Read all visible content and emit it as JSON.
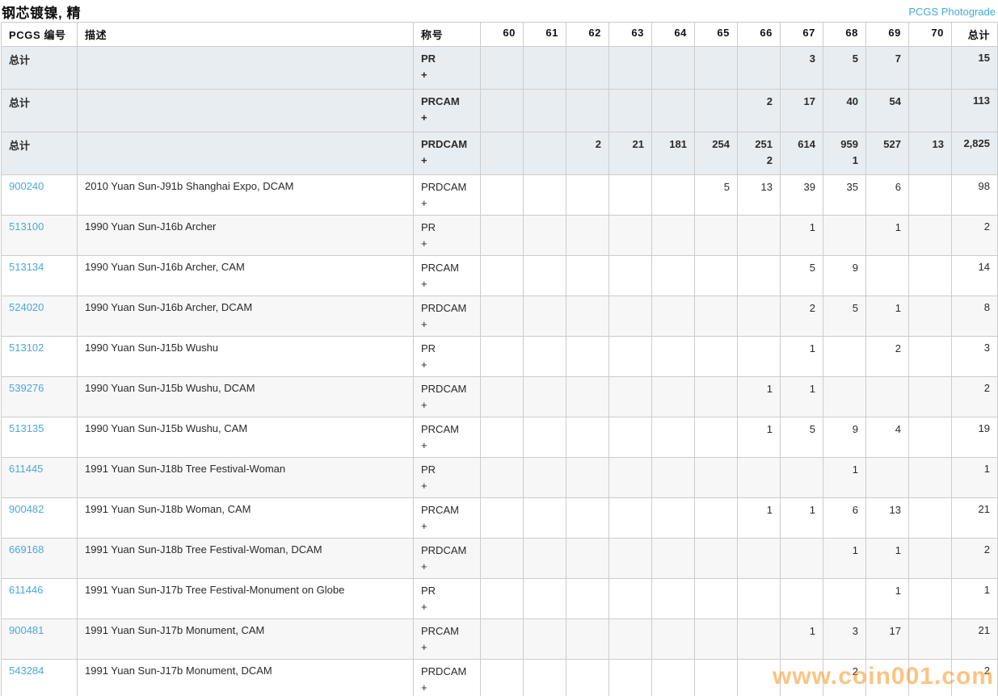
{
  "header": {
    "title": "钢芯镀镍, 精",
    "photograde_link": "PCGS Photograde"
  },
  "table": {
    "columns": {
      "pcgs": "PCGS 编号",
      "description": "描述",
      "designation": "称号",
      "grades": [
        "60",
        "61",
        "62",
        "63",
        "64",
        "65",
        "66",
        "67",
        "68",
        "69",
        "70"
      ],
      "total": "总计"
    },
    "plus_label": "+",
    "rows": [
      {
        "type": "total",
        "pcgs": "总计",
        "description": "",
        "designation": "PR",
        "grades": [
          "",
          "",
          "",
          "",
          "",
          "",
          "",
          "3",
          "5",
          "7",
          ""
        ],
        "grades_plus": [
          "",
          "",
          "",
          "",
          "",
          "",
          "",
          "",
          "",
          "",
          ""
        ],
        "total": "15"
      },
      {
        "type": "total",
        "pcgs": "总计",
        "description": "",
        "designation": "PRCAM",
        "grades": [
          "",
          "",
          "",
          "",
          "",
          "",
          "2",
          "17",
          "40",
          "54",
          ""
        ],
        "grades_plus": [
          "",
          "",
          "",
          "",
          "",
          "",
          "",
          "",
          "",
          "",
          ""
        ],
        "total": "113"
      },
      {
        "type": "total",
        "pcgs": "总计",
        "description": "",
        "designation": "PRDCAM",
        "grades": [
          "",
          "",
          "2",
          "21",
          "181",
          "254",
          "251",
          "614",
          "959",
          "527",
          "13"
        ],
        "grades_plus": [
          "",
          "",
          "",
          "",
          "",
          "",
          "2",
          "",
          "1",
          "",
          ""
        ],
        "total": "2,825"
      },
      {
        "type": "coin",
        "pcgs": "900240",
        "description": "2010 Yuan Sun-J91b Shanghai Expo, DCAM",
        "designation": "PRDCAM",
        "grades": [
          "",
          "",
          "",
          "",
          "",
          "5",
          "13",
          "39",
          "35",
          "6",
          ""
        ],
        "grades_plus": [
          "",
          "",
          "",
          "",
          "",
          "",
          "",
          "",
          "",
          "",
          ""
        ],
        "total": "98"
      },
      {
        "type": "coin",
        "pcgs": "513100",
        "description": "1990 Yuan Sun-J16b Archer",
        "designation": "PR",
        "grades": [
          "",
          "",
          "",
          "",
          "",
          "",
          "",
          "1",
          "",
          "1",
          ""
        ],
        "grades_plus": [
          "",
          "",
          "",
          "",
          "",
          "",
          "",
          "",
          "",
          "",
          ""
        ],
        "total": "2"
      },
      {
        "type": "coin",
        "pcgs": "513134",
        "description": "1990 Yuan Sun-J16b Archer, CAM",
        "designation": "PRCAM",
        "grades": [
          "",
          "",
          "",
          "",
          "",
          "",
          "",
          "5",
          "9",
          "",
          ""
        ],
        "grades_plus": [
          "",
          "",
          "",
          "",
          "",
          "",
          "",
          "",
          "",
          "",
          ""
        ],
        "total": "14"
      },
      {
        "type": "coin",
        "pcgs": "524020",
        "description": "1990 Yuan Sun-J16b Archer, DCAM",
        "designation": "PRDCAM",
        "grades": [
          "",
          "",
          "",
          "",
          "",
          "",
          "",
          "2",
          "5",
          "1",
          ""
        ],
        "grades_plus": [
          "",
          "",
          "",
          "",
          "",
          "",
          "",
          "",
          "",
          "",
          ""
        ],
        "total": "8"
      },
      {
        "type": "coin",
        "pcgs": "513102",
        "description": "1990 Yuan Sun-J15b Wushu",
        "designation": "PR",
        "grades": [
          "",
          "",
          "",
          "",
          "",
          "",
          "",
          "1",
          "",
          "2",
          ""
        ],
        "grades_plus": [
          "",
          "",
          "",
          "",
          "",
          "",
          "",
          "",
          "",
          "",
          ""
        ],
        "total": "3"
      },
      {
        "type": "coin",
        "pcgs": "539276",
        "description": "1990 Yuan Sun-J15b Wushu, DCAM",
        "designation": "PRDCAM",
        "grades": [
          "",
          "",
          "",
          "",
          "",
          "",
          "1",
          "1",
          "",
          "",
          ""
        ],
        "grades_plus": [
          "",
          "",
          "",
          "",
          "",
          "",
          "",
          "",
          "",
          "",
          ""
        ],
        "total": "2"
      },
      {
        "type": "coin",
        "pcgs": "513135",
        "description": "1990 Yuan Sun-J15b Wushu, CAM",
        "designation": "PRCAM",
        "grades": [
          "",
          "",
          "",
          "",
          "",
          "",
          "1",
          "5",
          "9",
          "4",
          ""
        ],
        "grades_plus": [
          "",
          "",
          "",
          "",
          "",
          "",
          "",
          "",
          "",
          "",
          ""
        ],
        "total": "19"
      },
      {
        "type": "coin",
        "pcgs": "611445",
        "description": "1991 Yuan Sun-J18b Tree Festival-Woman",
        "designation": "PR",
        "grades": [
          "",
          "",
          "",
          "",
          "",
          "",
          "",
          "",
          "1",
          "",
          ""
        ],
        "grades_plus": [
          "",
          "",
          "",
          "",
          "",
          "",
          "",
          "",
          "",
          "",
          ""
        ],
        "total": "1"
      },
      {
        "type": "coin",
        "pcgs": "900482",
        "description": "1991 Yuan Sun-J18b Woman, CAM",
        "designation": "PRCAM",
        "grades": [
          "",
          "",
          "",
          "",
          "",
          "",
          "1",
          "1",
          "6",
          "13",
          ""
        ],
        "grades_plus": [
          "",
          "",
          "",
          "",
          "",
          "",
          "",
          "",
          "",
          "",
          ""
        ],
        "total": "21"
      },
      {
        "type": "coin",
        "pcgs": "669168",
        "description": "1991 Yuan Sun-J18b Tree Festival-Woman, DCAM",
        "designation": "PRDCAM",
        "grades": [
          "",
          "",
          "",
          "",
          "",
          "",
          "",
          "",
          "1",
          "1",
          ""
        ],
        "grades_plus": [
          "",
          "",
          "",
          "",
          "",
          "",
          "",
          "",
          "",
          "",
          ""
        ],
        "total": "2"
      },
      {
        "type": "coin",
        "pcgs": "611446",
        "description": "1991 Yuan Sun-J17b Tree Festival-Monument on Globe",
        "designation": "PR",
        "grades": [
          "",
          "",
          "",
          "",
          "",
          "",
          "",
          "",
          "",
          "1",
          ""
        ],
        "grades_plus": [
          "",
          "",
          "",
          "",
          "",
          "",
          "",
          "",
          "",
          "",
          ""
        ],
        "total": "1"
      },
      {
        "type": "coin",
        "pcgs": "900481",
        "description": "1991 Yuan Sun-J17b Monument, CAM",
        "designation": "PRCAM",
        "grades": [
          "",
          "",
          "",
          "",
          "",
          "",
          "",
          "1",
          "3",
          "17",
          ""
        ],
        "grades_plus": [
          "",
          "",
          "",
          "",
          "",
          "",
          "",
          "",
          "",
          "",
          ""
        ],
        "total": "21"
      },
      {
        "type": "coin",
        "pcgs": "543284",
        "description": "1991 Yuan Sun-J17b Monument, DCAM",
        "designation": "PRDCAM",
        "grades": [
          "",
          "",
          "",
          "",
          "",
          "",
          "",
          "",
          "2",
          "",
          ""
        ],
        "grades_plus": [
          "",
          "",
          "",
          "",
          "",
          "",
          "",
          "",
          "",
          "",
          ""
        ],
        "total": "2"
      }
    ]
  },
  "watermark": "www.coin001.com",
  "colors": {
    "accent_blue": "#3fa9e1",
    "link_blue": "#4aa9dc",
    "total_row_bg": "#e8edf2",
    "alt_row_bg": "#f7f7f7",
    "border_gray": "#cccccc",
    "watermark_orange": "#f7941d"
  }
}
